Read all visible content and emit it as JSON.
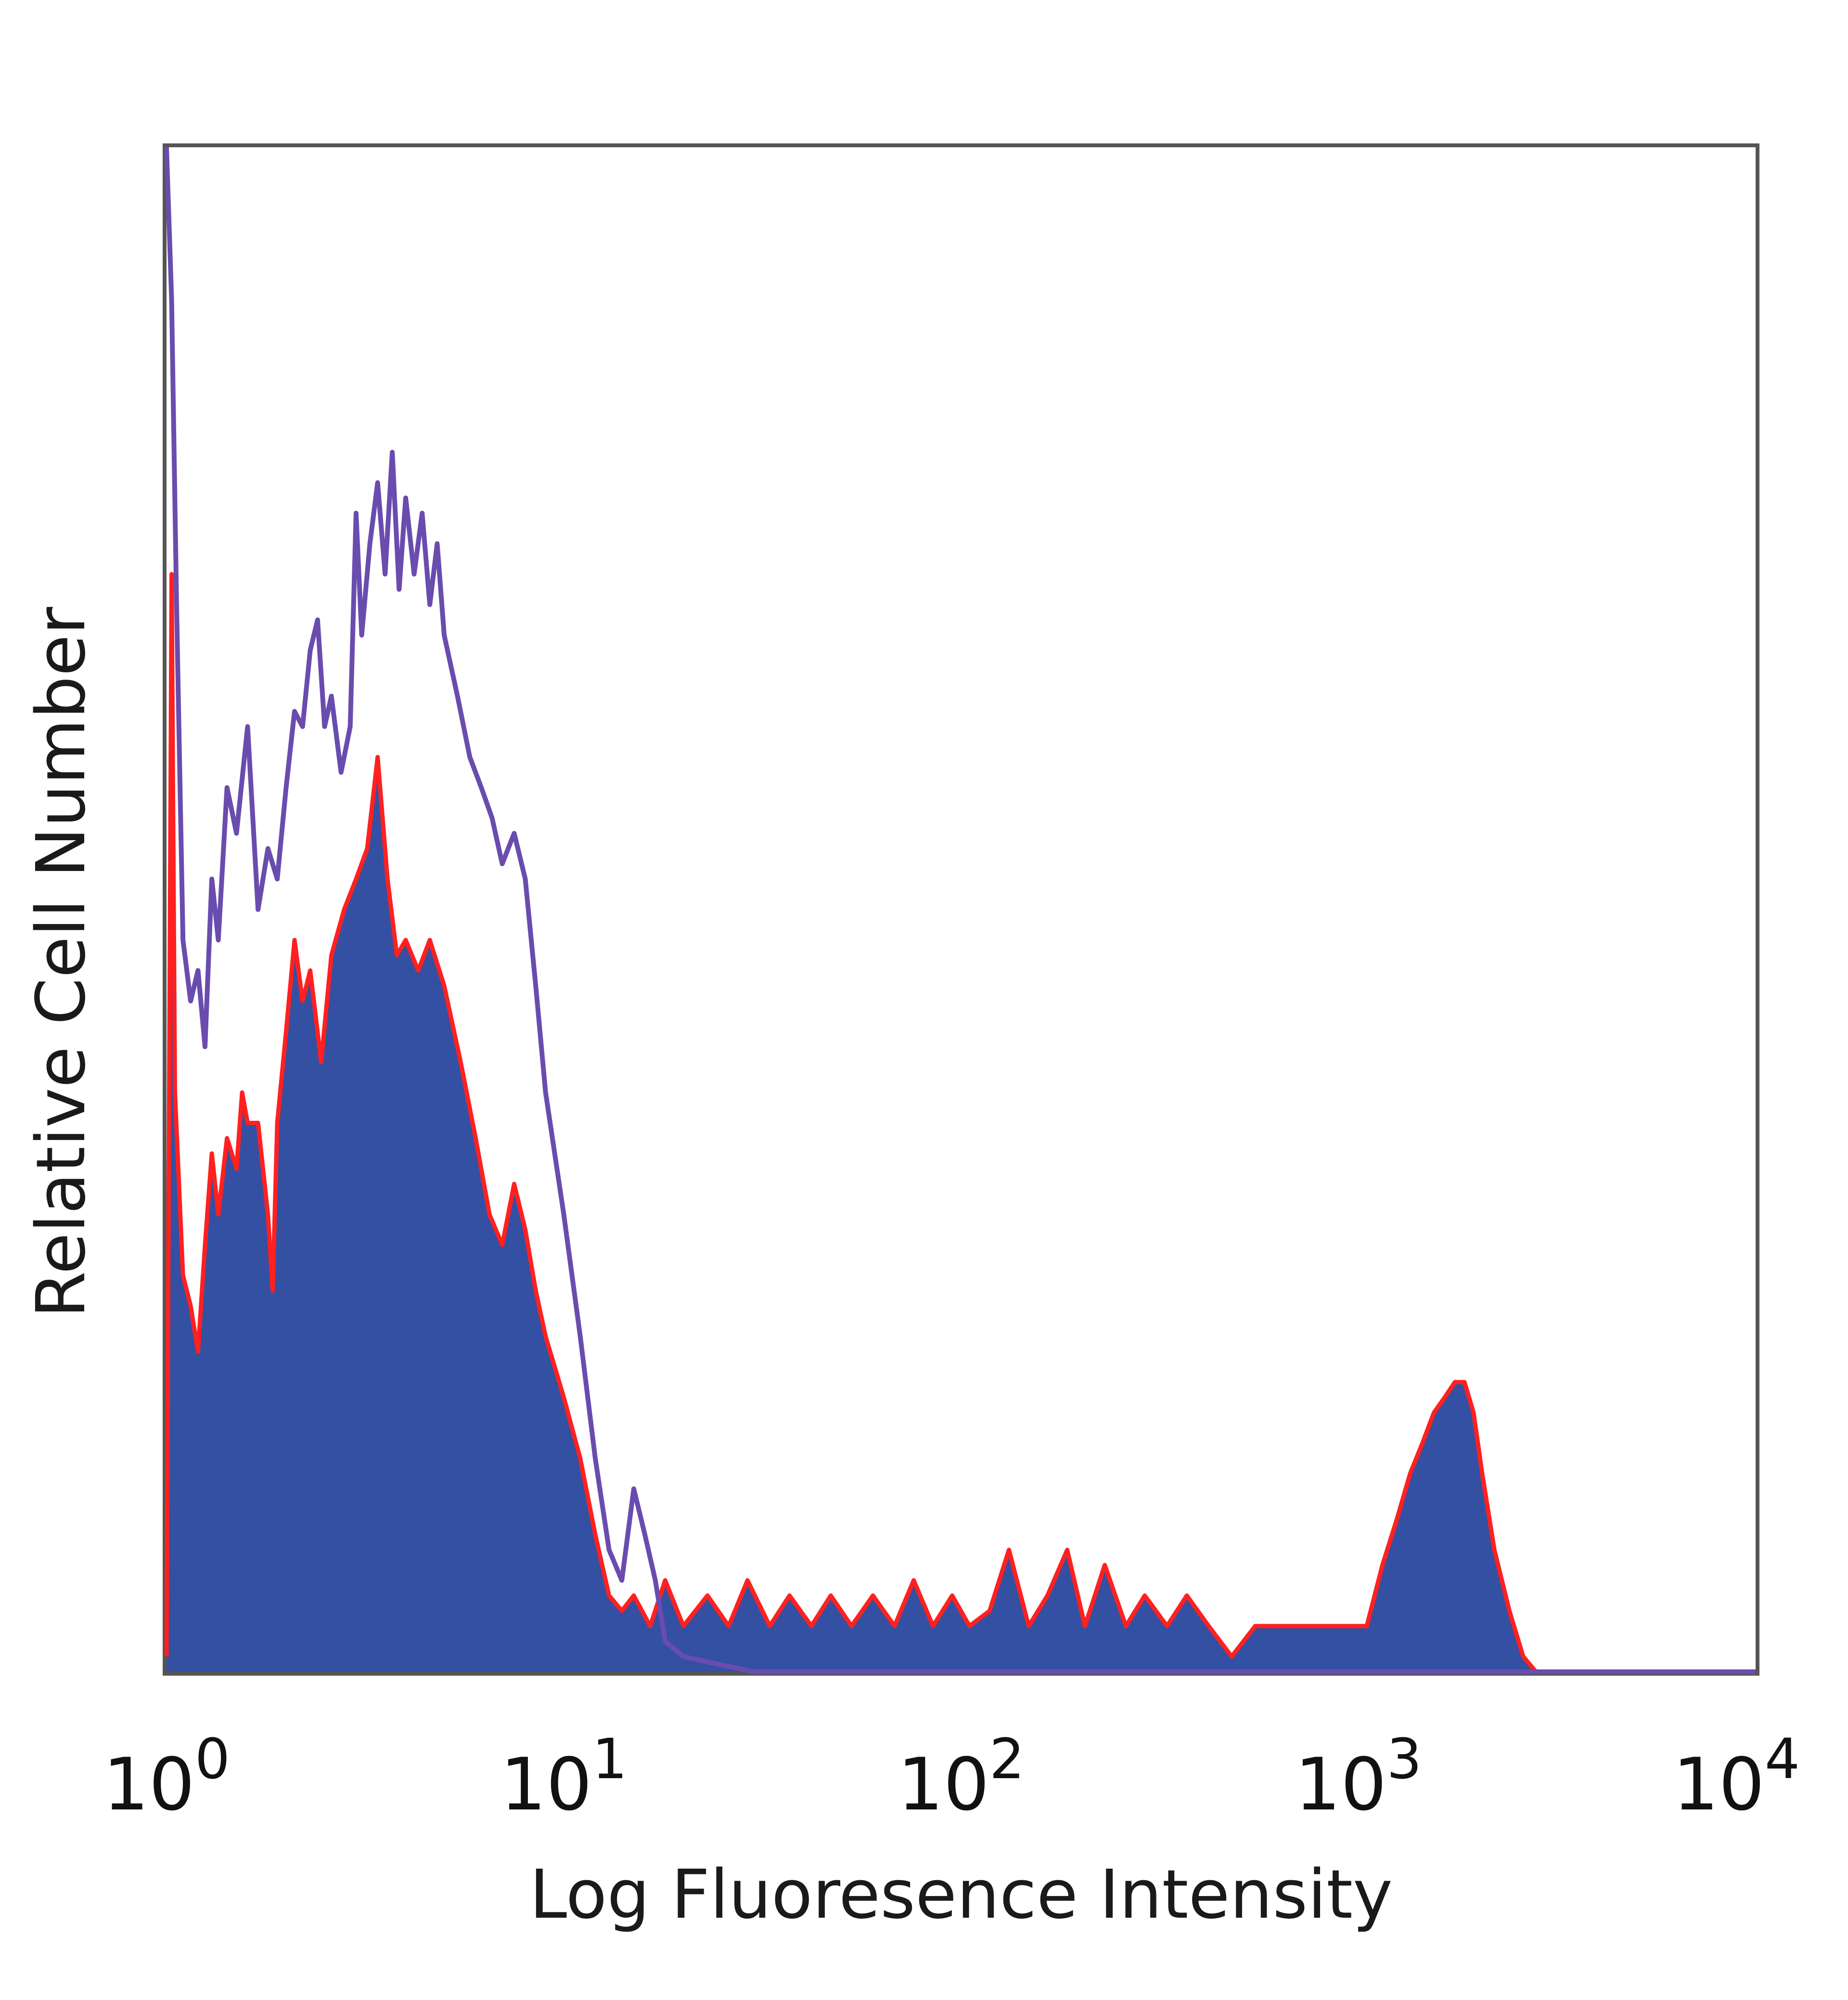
{
  "chart_data": {
    "type": "area",
    "title": "",
    "xlabel": "Log Fluoresence Intensity",
    "ylabel": "Relative Cell Number",
    "xscale": "log",
    "xlim": [
      1,
      10000
    ],
    "ylim": [
      0,
      100
    ],
    "grid": false,
    "legend": "none",
    "x_ticks": [
      {
        "base": "10",
        "exp": "0"
      },
      {
        "base": "10",
        "exp": "1"
      },
      {
        "base": "10",
        "exp": "2"
      },
      {
        "base": "10",
        "exp": "3"
      },
      {
        "base": "10",
        "exp": "4"
      }
    ],
    "series": [
      {
        "style": "filled",
        "fill_color": "#3350a3",
        "edge_color": "#ff2020",
        "points": [
          [
            1.0,
            1.0
          ],
          [
            1.03,
            72.0
          ],
          [
            1.05,
            38.0
          ],
          [
            1.1,
            26.0
          ],
          [
            1.15,
            24.0
          ],
          [
            1.2,
            21.0
          ],
          [
            1.25,
            28.0
          ],
          [
            1.3,
            34.0
          ],
          [
            1.35,
            30.0
          ],
          [
            1.42,
            35.0
          ],
          [
            1.5,
            33.0
          ],
          [
            1.55,
            38.0
          ],
          [
            1.6,
            36.0
          ],
          [
            1.7,
            36.0
          ],
          [
            1.8,
            30.0
          ],
          [
            1.85,
            25.0
          ],
          [
            1.9,
            36.0
          ],
          [
            2.0,
            42.0
          ],
          [
            2.1,
            48.0
          ],
          [
            2.2,
            44.0
          ],
          [
            2.3,
            46.0
          ],
          [
            2.45,
            40.0
          ],
          [
            2.6,
            47.0
          ],
          [
            2.8,
            50.0
          ],
          [
            3.0,
            52.0
          ],
          [
            3.2,
            54.0
          ],
          [
            3.4,
            60.0
          ],
          [
            3.6,
            52.0
          ],
          [
            3.8,
            47.0
          ],
          [
            4.0,
            48.0
          ],
          [
            4.3,
            46.0
          ],
          [
            4.6,
            48.0
          ],
          [
            5.0,
            45.0
          ],
          [
            5.5,
            40.0
          ],
          [
            6.0,
            35.0
          ],
          [
            6.5,
            30.0
          ],
          [
            7.0,
            28.0
          ],
          [
            7.5,
            32.0
          ],
          [
            8.0,
            29.0
          ],
          [
            8.5,
            25.0
          ],
          [
            9.0,
            22.0
          ],
          [
            10.0,
            18.0
          ],
          [
            11.0,
            14.0
          ],
          [
            12.0,
            9.0
          ],
          [
            13.0,
            5.0
          ],
          [
            14.0,
            4.0
          ],
          [
            15.0,
            5.0
          ],
          [
            16.5,
            3.0
          ],
          [
            18.0,
            6.0
          ],
          [
            20.0,
            3.0
          ],
          [
            23.0,
            5.0
          ],
          [
            26.0,
            3.0
          ],
          [
            29.0,
            6.0
          ],
          [
            33.0,
            3.0
          ],
          [
            37.0,
            5.0
          ],
          [
            42.0,
            3.0
          ],
          [
            47.0,
            5.0
          ],
          [
            53.0,
            3.0
          ],
          [
            60.0,
            5.0
          ],
          [
            68.0,
            3.0
          ],
          [
            76.0,
            6.0
          ],
          [
            85.0,
            3.0
          ],
          [
            95.0,
            5.0
          ],
          [
            105.0,
            3.0
          ],
          [
            118.0,
            4.0
          ],
          [
            132.0,
            8.0
          ],
          [
            148.0,
            3.0
          ],
          [
            165.0,
            5.0
          ],
          [
            185.0,
            8.0
          ],
          [
            205.0,
            3.0
          ],
          [
            230.0,
            7.0
          ],
          [
            260.0,
            3.0
          ],
          [
            290.0,
            5.0
          ],
          [
            330.0,
            3.0
          ],
          [
            370.0,
            5.0
          ],
          [
            420.0,
            3.0
          ],
          [
            480.0,
            1.0
          ],
          [
            550.0,
            3.0
          ],
          [
            650.0,
            3.0
          ],
          [
            750.0,
            3.0
          ],
          [
            850.0,
            3.0
          ],
          [
            950.0,
            3.0
          ],
          [
            1050.0,
            3.0
          ],
          [
            1150.0,
            7.0
          ],
          [
            1250.0,
            10.0
          ],
          [
            1350.0,
            13.0
          ],
          [
            1450.0,
            15.0
          ],
          [
            1550.0,
            17.0
          ],
          [
            1650.0,
            18.0
          ],
          [
            1750.0,
            19.0
          ],
          [
            1850.0,
            19.0
          ],
          [
            1950.0,
            17.0
          ],
          [
            2050.0,
            13.0
          ],
          [
            2200.0,
            8.0
          ],
          [
            2400.0,
            4.0
          ],
          [
            2600.0,
            1.0
          ],
          [
            2800.0,
            0.0
          ],
          [
            10000.0,
            0.0
          ]
        ]
      },
      {
        "style": "outline",
        "line_color": "#6a4caf",
        "points": [
          [
            1.0,
            100.0
          ],
          [
            1.03,
            90.0
          ],
          [
            1.06,
            70.0
          ],
          [
            1.1,
            48.0
          ],
          [
            1.15,
            44.0
          ],
          [
            1.2,
            46.0
          ],
          [
            1.25,
            41.0
          ],
          [
            1.3,
            52.0
          ],
          [
            1.35,
            48.0
          ],
          [
            1.42,
            58.0
          ],
          [
            1.5,
            55.0
          ],
          [
            1.6,
            62.0
          ],
          [
            1.7,
            50.0
          ],
          [
            1.8,
            54.0
          ],
          [
            1.9,
            52.0
          ],
          [
            2.0,
            58.0
          ],
          [
            2.1,
            63.0
          ],
          [
            2.2,
            62.0
          ],
          [
            2.3,
            67.0
          ],
          [
            2.4,
            69.0
          ],
          [
            2.5,
            62.0
          ],
          [
            2.6,
            64.0
          ],
          [
            2.75,
            59.0
          ],
          [
            2.9,
            62.0
          ],
          [
            3.0,
            76.0
          ],
          [
            3.1,
            68.0
          ],
          [
            3.25,
            74.0
          ],
          [
            3.4,
            78.0
          ],
          [
            3.55,
            72.0
          ],
          [
            3.7,
            80.0
          ],
          [
            3.85,
            71.0
          ],
          [
            4.0,
            77.0
          ],
          [
            4.2,
            72.0
          ],
          [
            4.4,
            76.0
          ],
          [
            4.6,
            70.0
          ],
          [
            4.8,
            74.0
          ],
          [
            5.0,
            68.0
          ],
          [
            5.4,
            64.0
          ],
          [
            5.8,
            60.0
          ],
          [
            6.2,
            58.0
          ],
          [
            6.6,
            56.0
          ],
          [
            7.0,
            53.0
          ],
          [
            7.5,
            55.0
          ],
          [
            8.0,
            52.0
          ],
          [
            8.5,
            45.0
          ],
          [
            9.0,
            38.0
          ],
          [
            10.0,
            30.0
          ],
          [
            11.0,
            22.0
          ],
          [
            12.0,
            14.0
          ],
          [
            13.0,
            8.0
          ],
          [
            14.0,
            6.0
          ],
          [
            15.0,
            12.0
          ],
          [
            16.0,
            9.0
          ],
          [
            17.0,
            6.0
          ],
          [
            18.0,
            2.0
          ],
          [
            20.0,
            1.0
          ],
          [
            30.0,
            0.0
          ],
          [
            10000.0,
            0.0
          ]
        ]
      }
    ]
  }
}
